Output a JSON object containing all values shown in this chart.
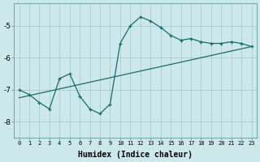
{
  "xlabel": "Humidex (Indice chaleur)",
  "ylabel": "",
  "bg_color": "#cce8ea",
  "line_color": "#1a6b6b",
  "grid_color": "#aacdd4",
  "xlim": [
    -0.5,
    23.5
  ],
  "ylim": [
    -8.5,
    -4.3
  ],
  "yticks": [
    -8,
    -7,
    -6,
    -5
  ],
  "ytick_labels": [
    "-8",
    "-7",
    "-6",
    "-5"
  ],
  "xticks": [
    0,
    1,
    2,
    3,
    4,
    5,
    6,
    7,
    8,
    9,
    10,
    11,
    12,
    13,
    14,
    15,
    16,
    17,
    18,
    19,
    20,
    21,
    22,
    23
  ],
  "line1_x": [
    0,
    1,
    2,
    3,
    4,
    5,
    6,
    7,
    8,
    9,
    10,
    11,
    12,
    13,
    14,
    15,
    16,
    17,
    18,
    19,
    20,
    21,
    22,
    23
  ],
  "line1_y": [
    -7.0,
    -7.15,
    -7.4,
    -7.6,
    -6.65,
    -6.5,
    -7.2,
    -7.6,
    -7.75,
    -7.45,
    -5.55,
    -5.0,
    -4.72,
    -4.85,
    -5.05,
    -5.3,
    -5.45,
    -5.4,
    -5.5,
    -5.55,
    -5.55,
    -5.5,
    -5.55,
    -5.65
  ],
  "line2_x": [
    0,
    23
  ],
  "line2_y": [
    -7.25,
    -5.65
  ],
  "xlabel_fontsize": 7,
  "xlabel_bold": true,
  "xtick_fontsize": 5,
  "ytick_fontsize": 6.5
}
